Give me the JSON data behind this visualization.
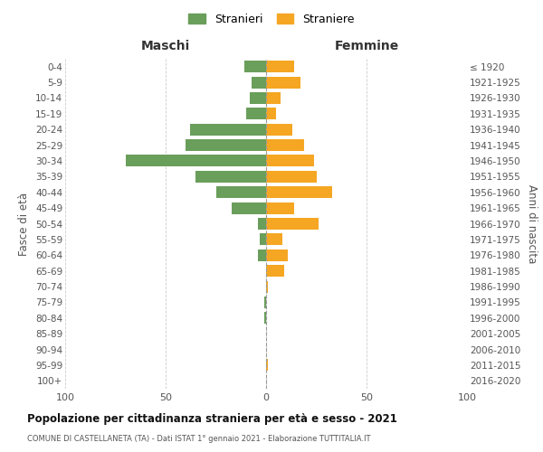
{
  "age_groups": [
    "0-4",
    "5-9",
    "10-14",
    "15-19",
    "20-24",
    "25-29",
    "30-34",
    "35-39",
    "40-44",
    "45-49",
    "50-54",
    "55-59",
    "60-64",
    "65-69",
    "70-74",
    "75-79",
    "80-84",
    "85-89",
    "90-94",
    "95-99",
    "100+"
  ],
  "birth_years": [
    "2016-2020",
    "2011-2015",
    "2006-2010",
    "2001-2005",
    "1996-2000",
    "1991-1995",
    "1986-1990",
    "1981-1985",
    "1976-1980",
    "1971-1975",
    "1966-1970",
    "1961-1965",
    "1956-1960",
    "1951-1955",
    "1946-1950",
    "1941-1945",
    "1936-1940",
    "1931-1935",
    "1926-1930",
    "1921-1925",
    "≤ 1920"
  ],
  "maschi": [
    11,
    7,
    8,
    10,
    38,
    40,
    70,
    35,
    25,
    17,
    4,
    3,
    4,
    0,
    0,
    1,
    1,
    0,
    0,
    0,
    0
  ],
  "femmine": [
    14,
    17,
    7,
    5,
    13,
    19,
    24,
    25,
    33,
    14,
    26,
    8,
    11,
    9,
    1,
    0,
    0,
    0,
    0,
    1,
    0
  ],
  "color_maschi": "#6a9e5b",
  "color_femmine": "#f5a623",
  "title": "Popolazione per cittadinanza straniera per età e sesso - 2021",
  "subtitle": "COMUNE DI CASTELLANETA (TA) - Dati ISTAT 1° gennaio 2021 - Elaborazione TUTTITALIA.IT",
  "xlabel_left": "Maschi",
  "xlabel_right": "Femmine",
  "ylabel_left": "Fasce di età",
  "ylabel_right": "Anni di nascita",
  "xlim": 100,
  "legend_maschi": "Stranieri",
  "legend_femmine": "Straniere",
  "background_color": "#ffffff",
  "grid_color": "#cccccc"
}
